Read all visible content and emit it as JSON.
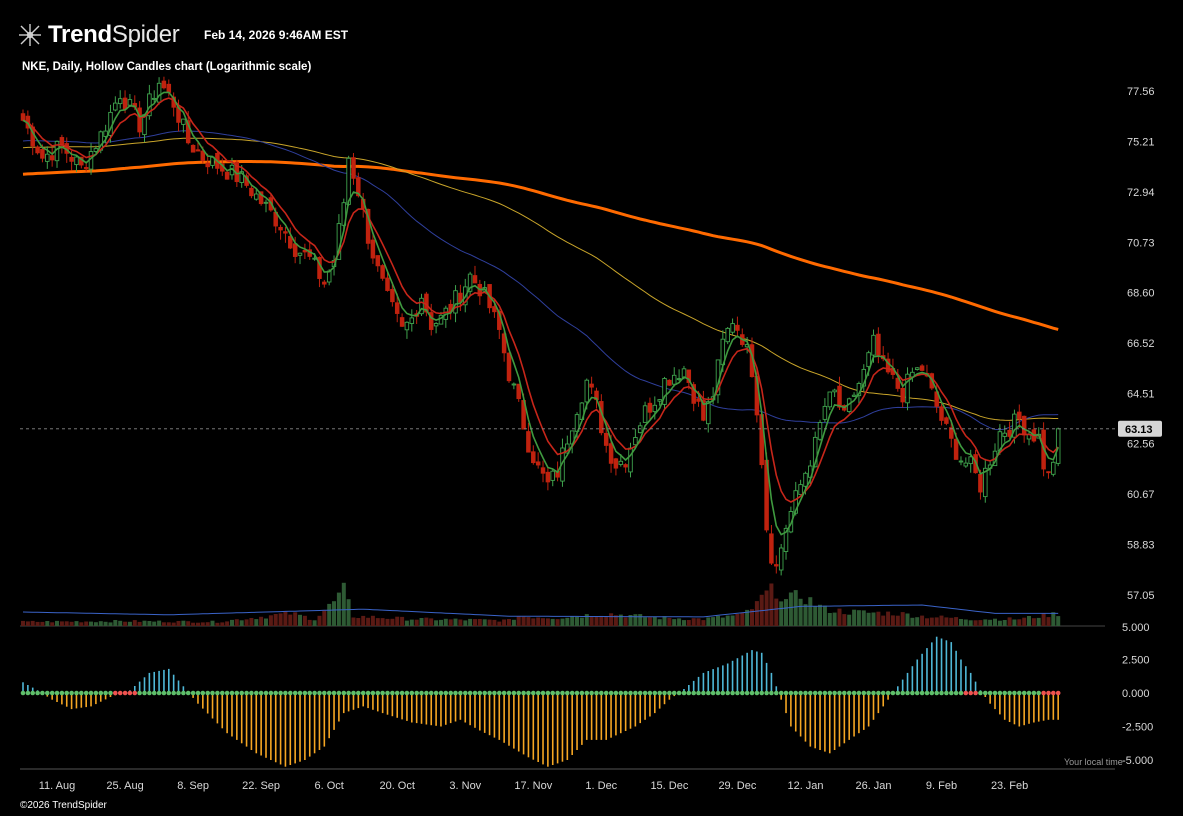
{
  "header": {
    "brand_bold": "Trend",
    "brand_light": "Spider",
    "timestamp": "Feb 14, 2026 9:46AM EST",
    "subtitle": "NKE, Daily, Hollow Candles chart (Logarithmic scale)"
  },
  "footer": {
    "copyright": "©2026 TrendSpider",
    "local_time_label": "Your local time"
  },
  "colors": {
    "background": "#000000",
    "up": "#3fa34d",
    "down": "#c0220f",
    "ema_fast": "#3f9a3f",
    "ema_slow": "#c7261a",
    "sma_50": "#2f3f9c",
    "sma_100": "#c9a52a",
    "sma_200": "#ff6a00",
    "osc_pos": "#4fb8d8",
    "osc_neg": "#f5a623",
    "dot_green": "#5fbf6a",
    "dot_red": "#ef5350"
  },
  "chart_data": {
    "type": "candlestick",
    "symbol": "NKE",
    "interval": "Daily",
    "scale": "log",
    "last_price": "63.13",
    "price_axis_ticks": [
      "77.56",
      "75.21",
      "72.94",
      "70.73",
      "68.60",
      "66.52",
      "64.51",
      "62.56",
      "60.67",
      "58.83",
      "57.05"
    ],
    "volume_axis_tick": "5.000",
    "oscillator_axis_ticks": [
      "2.500",
      "0.000",
      "-2.500",
      "-5.000"
    ],
    "x_axis_ticks": [
      "11. Aug",
      "25. Aug",
      "8. Sep",
      "22. Sep",
      "6. Oct",
      "20. Oct",
      "3. Nov",
      "17. Nov",
      "1. Dec",
      "15. Dec",
      "29. Dec",
      "12. Jan",
      "26. Jan",
      "9. Feb",
      "23. Feb"
    ],
    "price_keyframes": [
      [
        0,
        76.2
      ],
      [
        4,
        74.5
      ],
      [
        8,
        75.0
      ],
      [
        12,
        74.0
      ],
      [
        16,
        75.5
      ],
      [
        20,
        77.5
      ],
      [
        24,
        76.0
      ],
      [
        28,
        78.0
      ],
      [
        31,
        77.0
      ],
      [
        34,
        75.2
      ],
      [
        37,
        74.5
      ],
      [
        41,
        74.0
      ],
      [
        45,
        73.5
      ],
      [
        49,
        72.5
      ],
      [
        53,
        71.5
      ],
      [
        56,
        70.5
      ],
      [
        59,
        70.0
      ],
      [
        62,
        69.0
      ],
      [
        64,
        70.0
      ],
      [
        66,
        72.5
      ],
      [
        67,
        74.5
      ],
      [
        69,
        73.0
      ],
      [
        71,
        71.0
      ],
      [
        73,
        69.5
      ],
      [
        75,
        68.3
      ],
      [
        78,
        67.0
      ],
      [
        80,
        67.5
      ],
      [
        82,
        68.5
      ],
      [
        84,
        67.3
      ],
      [
        86,
        67.5
      ],
      [
        88,
        68.0
      ],
      [
        90,
        68.6
      ],
      [
        92,
        69.3
      ],
      [
        94,
        68.8
      ],
      [
        96,
        68.0
      ],
      [
        98,
        67.0
      ],
      [
        100,
        65.3
      ],
      [
        102,
        64.0
      ],
      [
        104,
        62.6
      ],
      [
        106,
        61.6
      ],
      [
        108,
        61.0
      ],
      [
        110,
        61.5
      ],
      [
        112,
        62.8
      ],
      [
        114,
        64.0
      ],
      [
        116,
        65.0
      ],
      [
        118,
        64.0
      ],
      [
        120,
        62.5
      ],
      [
        122,
        61.8
      ],
      [
        124,
        62.0
      ],
      [
        126,
        63.0
      ],
      [
        128,
        63.8
      ],
      [
        130,
        64.3
      ],
      [
        132,
        65.0
      ],
      [
        134,
        65.3
      ],
      [
        136,
        65.5
      ],
      [
        138,
        64.5
      ],
      [
        140,
        63.5
      ],
      [
        142,
        64.5
      ],
      [
        144,
        66.5
      ],
      [
        146,
        67.5
      ],
      [
        148,
        66.8
      ],
      [
        150,
        65.5
      ],
      [
        151,
        64.0
      ],
      [
        152,
        62.0
      ],
      [
        153,
        59.5
      ],
      [
        154,
        58.5
      ],
      [
        155,
        58.0
      ],
      [
        157,
        59.5
      ],
      [
        159,
        60.5
      ],
      [
        161,
        61.5
      ],
      [
        163,
        62.5
      ],
      [
        165,
        64.0
      ],
      [
        167,
        64.5
      ],
      [
        169,
        63.5
      ],
      [
        171,
        64.5
      ],
      [
        173,
        65.3
      ],
      [
        175,
        66.5
      ],
      [
        177,
        65.5
      ],
      [
        179,
        65.0
      ],
      [
        181,
        64.5
      ],
      [
        183,
        65.3
      ],
      [
        185,
        65.5
      ],
      [
        187,
        64.5
      ],
      [
        189,
        63.5
      ],
      [
        191,
        62.6
      ],
      [
        193,
        62.0
      ],
      [
        195,
        61.7
      ],
      [
        197,
        61.0
      ],
      [
        199,
        62.0
      ],
      [
        201,
        63.0
      ],
      [
        203,
        63.2
      ],
      [
        205,
        63.5
      ],
      [
        207,
        63.0
      ],
      [
        209,
        62.8
      ],
      [
        210,
        61.8
      ],
      [
        211,
        61.3
      ],
      [
        212,
        62.0
      ],
      [
        213,
        63.13
      ]
    ],
    "volume_keyframes": [
      [
        0,
        0.3
      ],
      [
        20,
        0.35
      ],
      [
        40,
        0.3
      ],
      [
        55,
        0.9
      ],
      [
        60,
        0.5
      ],
      [
        64,
        1.7
      ],
      [
        66,
        2.5
      ],
      [
        68,
        0.7
      ],
      [
        80,
        0.5
      ],
      [
        100,
        0.4
      ],
      [
        102,
        0.7
      ],
      [
        110,
        0.6
      ],
      [
        120,
        0.9
      ],
      [
        130,
        0.6
      ],
      [
        140,
        0.5
      ],
      [
        148,
        0.8
      ],
      [
        151,
        1.5
      ],
      [
        152,
        2.0
      ],
      [
        153,
        2.3
      ],
      [
        155,
        2.6
      ],
      [
        157,
        1.8
      ],
      [
        160,
        2.2
      ],
      [
        165,
        1.2
      ],
      [
        170,
        1.0
      ],
      [
        180,
        0.9
      ],
      [
        185,
        0.7
      ],
      [
        195,
        0.5
      ],
      [
        205,
        0.5
      ],
      [
        213,
        0.9
      ]
    ],
    "volume_avg_keyframes": [
      [
        0,
        1.0
      ],
      [
        30,
        0.8
      ],
      [
        70,
        1.2
      ],
      [
        100,
        0.7
      ],
      [
        140,
        0.65
      ],
      [
        160,
        1.4
      ],
      [
        185,
        1.5
      ],
      [
        200,
        0.9
      ],
      [
        213,
        0.9
      ]
    ],
    "oscillator_keyframes": [
      [
        0,
        0.8
      ],
      [
        3,
        0.2
      ],
      [
        6,
        -0.5
      ],
      [
        10,
        -1.2
      ],
      [
        14,
        -1.0
      ],
      [
        18,
        -0.3
      ],
      [
        22,
        0.2
      ],
      [
        26,
        1.5
      ],
      [
        30,
        1.8
      ],
      [
        33,
        0.5
      ],
      [
        36,
        -0.8
      ],
      [
        42,
        -3.0
      ],
      [
        48,
        -4.5
      ],
      [
        54,
        -5.5
      ],
      [
        58,
        -5.0
      ],
      [
        62,
        -4.0
      ],
      [
        66,
        -1.5
      ],
      [
        70,
        -1.0
      ],
      [
        74,
        -1.5
      ],
      [
        80,
        -2.2
      ],
      [
        86,
        -2.5
      ],
      [
        90,
        -2.0
      ],
      [
        94,
        -2.8
      ],
      [
        98,
        -3.5
      ],
      [
        104,
        -4.8
      ],
      [
        108,
        -5.5
      ],
      [
        112,
        -5.0
      ],
      [
        116,
        -3.5
      ],
      [
        120,
        -3.5
      ],
      [
        126,
        -2.5
      ],
      [
        130,
        -1.5
      ],
      [
        133,
        -0.5
      ],
      [
        136,
        0.3
      ],
      [
        140,
        1.5
      ],
      [
        145,
        2.2
      ],
      [
        150,
        3.2
      ],
      [
        152,
        3.0
      ],
      [
        154,
        1.5
      ],
      [
        156,
        -0.5
      ],
      [
        158,
        -2.5
      ],
      [
        162,
        -4.0
      ],
      [
        166,
        -4.5
      ],
      [
        170,
        -3.5
      ],
      [
        174,
        -2.5
      ],
      [
        176,
        -1.5
      ],
      [
        178,
        -0.5
      ],
      [
        180,
        0.5
      ],
      [
        184,
        2.5
      ],
      [
        188,
        4.2
      ],
      [
        191,
        3.8
      ],
      [
        193,
        2.5
      ],
      [
        195,
        1.5
      ],
      [
        197,
        0.2
      ],
      [
        199,
        -0.8
      ],
      [
        202,
        -2.0
      ],
      [
        205,
        -2.5
      ],
      [
        208,
        -2.2
      ],
      [
        211,
        -2.0
      ],
      [
        213,
        -2.0
      ]
    ],
    "legend": "none",
    "grid": false
  }
}
